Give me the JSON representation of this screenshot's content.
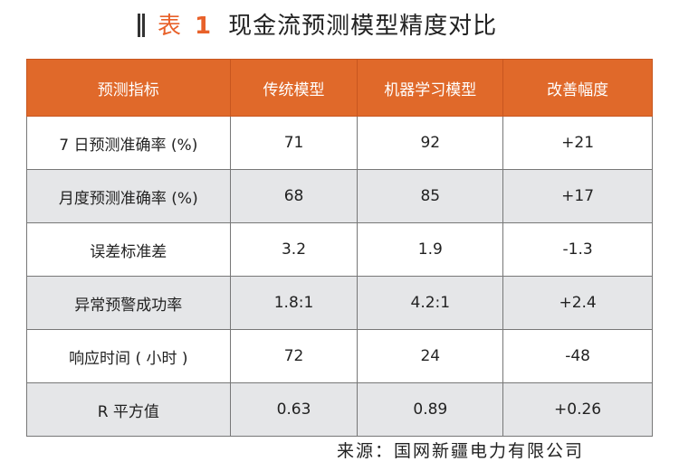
{
  "title": {
    "label": "表",
    "number": "1",
    "text": "现金流预测模型精度对比"
  },
  "table": {
    "headers": [
      "预测指标",
      "传统模型",
      "机器学习模型",
      "改善幅度"
    ],
    "rows": [
      [
        "7 日预测准确率 (%)",
        "71",
        "92",
        "+21"
      ],
      [
        "月度预测准确率 (%)",
        "68",
        "85",
        "+17"
      ],
      [
        "误差标准差",
        "3.2",
        "1.9",
        "-1.3"
      ],
      [
        "异常预警成功率",
        "1.8:1",
        "4.2:1",
        "+2.4"
      ],
      [
        "响应时间 ( 小时 )",
        "72",
        "24",
        "-48"
      ],
      [
        "R 平方值",
        "0.63",
        "0.89",
        "+0.26"
      ]
    ]
  },
  "source": "来源：国网新疆电力有限公司"
}
